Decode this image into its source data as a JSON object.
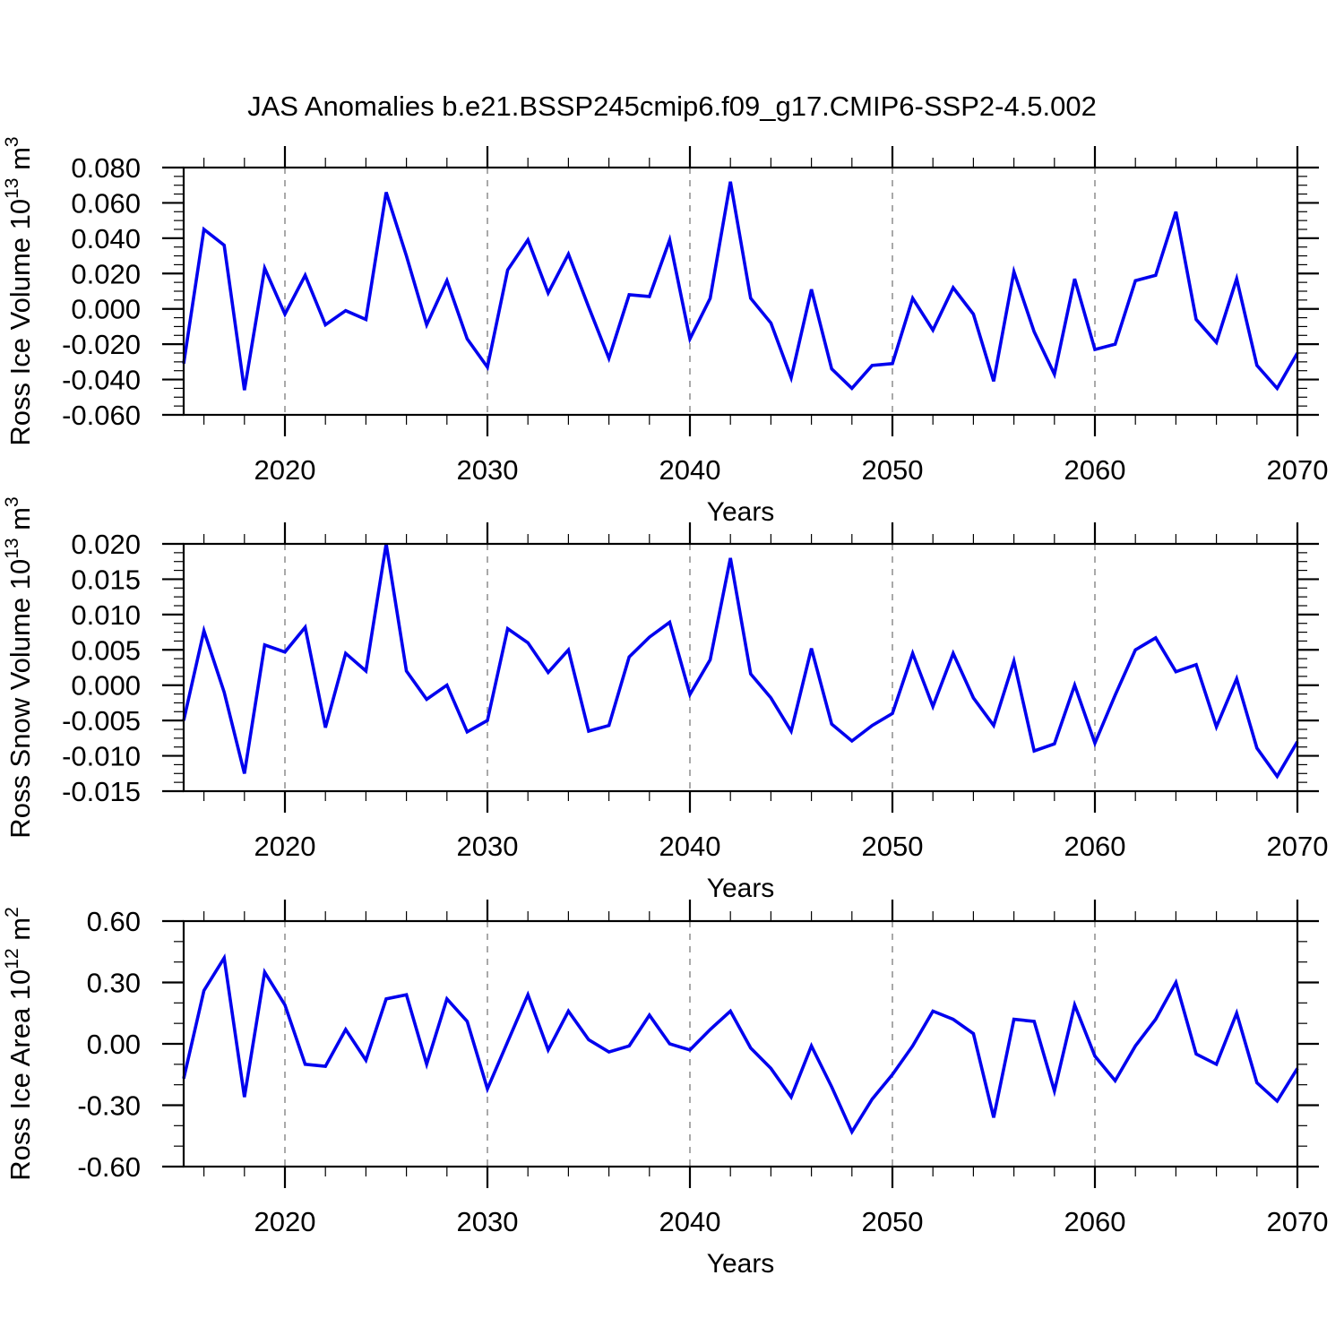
{
  "title": "JAS Anomalies b.e21.BSSP245cmip6.f09_g17.CMIP6-SSP2-4.5.002",
  "colors": {
    "line": "#0000EE",
    "grid": "#A9A9A9",
    "axis": "#000000",
    "background": "#FFFFFF"
  },
  "chart_data": [
    {
      "type": "line",
      "ylabel": "Ross Ice Volume 10^13 m^3",
      "xlabel": "Years",
      "x_range": [
        2015,
        2070
      ],
      "x_ticks": [
        2020,
        2030,
        2040,
        2050,
        2060,
        2070
      ],
      "x_minor_step": 2,
      "ylim": [
        -0.06,
        0.08
      ],
      "y_major_step": 0.02,
      "y_minor_div": 4,
      "y_decimals": 3,
      "x_start": 2015,
      "values": [
        -0.031,
        0.045,
        0.036,
        -0.046,
        0.023,
        -0.003,
        0.019,
        -0.009,
        -0.001,
        -0.006,
        0.066,
        0.03,
        -0.009,
        0.016,
        -0.017,
        -0.033,
        0.022,
        0.039,
        0.009,
        0.031,
        0.001,
        -0.028,
        0.008,
        0.007,
        0.039,
        -0.017,
        0.006,
        0.072,
        0.006,
        -0.008,
        -0.039,
        0.011,
        -0.034,
        -0.045,
        -0.032,
        -0.031,
        0.006,
        -0.012,
        0.012,
        -0.003,
        -0.041,
        0.021,
        -0.013,
        -0.037,
        0.017,
        -0.023,
        -0.02,
        0.016,
        0.019,
        0.055,
        -0.006,
        -0.019,
        0.017,
        -0.032,
        -0.045,
        -0.025
      ]
    },
    {
      "type": "line",
      "ylabel": "Ross Snow Volume 10^13 m^3",
      "xlabel": "Years",
      "x_range": [
        2015,
        2070
      ],
      "x_ticks": [
        2020,
        2030,
        2040,
        2050,
        2060,
        2070
      ],
      "x_minor_step": 2,
      "ylim": [
        -0.015,
        0.02
      ],
      "y_major_step": 0.005,
      "y_minor_div": 4,
      "y_decimals": 3,
      "x_start": 2015,
      "values": [
        -0.005,
        0.0077,
        -0.001,
        -0.0125,
        0.0057,
        0.0047,
        0.0082,
        -0.006,
        0.0045,
        0.002,
        0.02,
        0.002,
        -0.002,
        0.0,
        -0.0066,
        -0.005,
        0.008,
        0.006,
        0.0018,
        0.005,
        -0.0065,
        -0.0057,
        0.004,
        0.0068,
        0.0089,
        -0.0013,
        0.0036,
        0.018,
        0.0016,
        -0.0018,
        -0.0065,
        0.0052,
        -0.0055,
        -0.0079,
        -0.0057,
        -0.004,
        0.0045,
        -0.003,
        0.0045,
        -0.0018,
        -0.0057,
        0.0034,
        -0.0093,
        -0.0083,
        0.0,
        -0.0082,
        -0.0014,
        0.005,
        0.0067,
        0.0019,
        0.0029,
        -0.0059,
        0.0009,
        -0.0089,
        -0.0129,
        -0.008
      ]
    },
    {
      "type": "line",
      "ylabel": "Ross Ice Area 10^12 m^2",
      "xlabel": "Years",
      "x_range": [
        2015,
        2070
      ],
      "x_ticks": [
        2020,
        2030,
        2040,
        2050,
        2060,
        2070
      ],
      "x_minor_step": 2,
      "ylim": [
        -0.6,
        0.6
      ],
      "y_major_step": 0.3,
      "y_minor_div": 3,
      "y_decimals": 2,
      "x_start": 2015,
      "values": [
        -0.17,
        0.26,
        0.42,
        -0.26,
        0.35,
        0.19,
        -0.1,
        -0.11,
        0.07,
        -0.08,
        0.22,
        0.24,
        -0.1,
        0.22,
        0.11,
        -0.22,
        0.01,
        0.24,
        -0.03,
        0.16,
        0.02,
        -0.04,
        -0.01,
        0.14,
        0.0,
        -0.03,
        0.07,
        0.16,
        -0.02,
        -0.12,
        -0.26,
        -0.01,
        -0.21,
        -0.43,
        -0.27,
        -0.15,
        -0.01,
        0.16,
        0.12,
        0.05,
        -0.36,
        0.12,
        0.11,
        -0.23,
        0.19,
        -0.06,
        -0.18,
        -0.01,
        0.12,
        0.3,
        -0.05,
        -0.1,
        0.15,
        -0.19,
        -0.28,
        -0.12
      ]
    }
  ]
}
